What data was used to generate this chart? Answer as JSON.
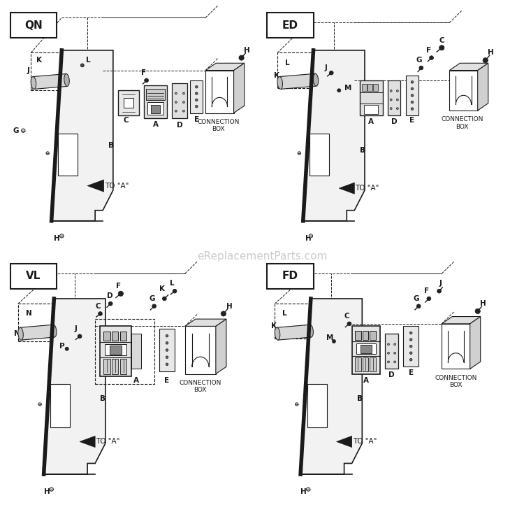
{
  "panels": [
    "QN",
    "ED",
    "VL",
    "FD"
  ],
  "bg_color": "#ffffff",
  "lc": "#1a1a1a",
  "watermark": "eReplacementParts.com",
  "label_fs": 7.5,
  "title_fs": 11
}
